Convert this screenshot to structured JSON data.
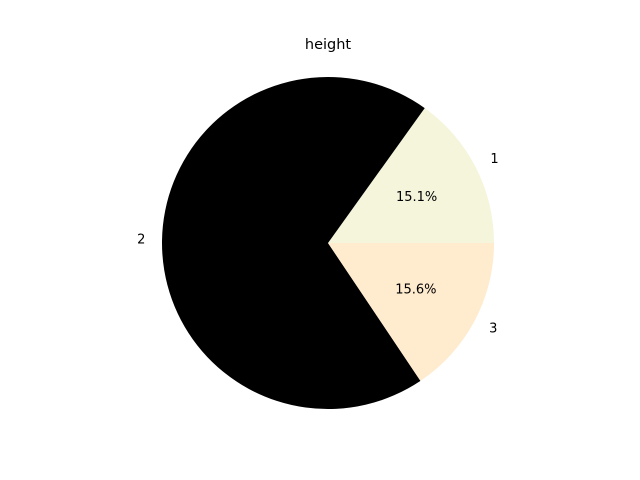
{
  "chart_data": {
    "type": "pie",
    "title": "height",
    "categories": [
      "1",
      "2",
      "3"
    ],
    "values": [
      15.1,
      69.3,
      15.6
    ],
    "percent_labels": [
      "15.1%",
      "",
      "15.6%"
    ],
    "colors": [
      "#f5f5dc",
      "#000000",
      "#ffebcd"
    ],
    "start_angle_deg": 0,
    "counterclockwise": true,
    "legend": "none"
  }
}
